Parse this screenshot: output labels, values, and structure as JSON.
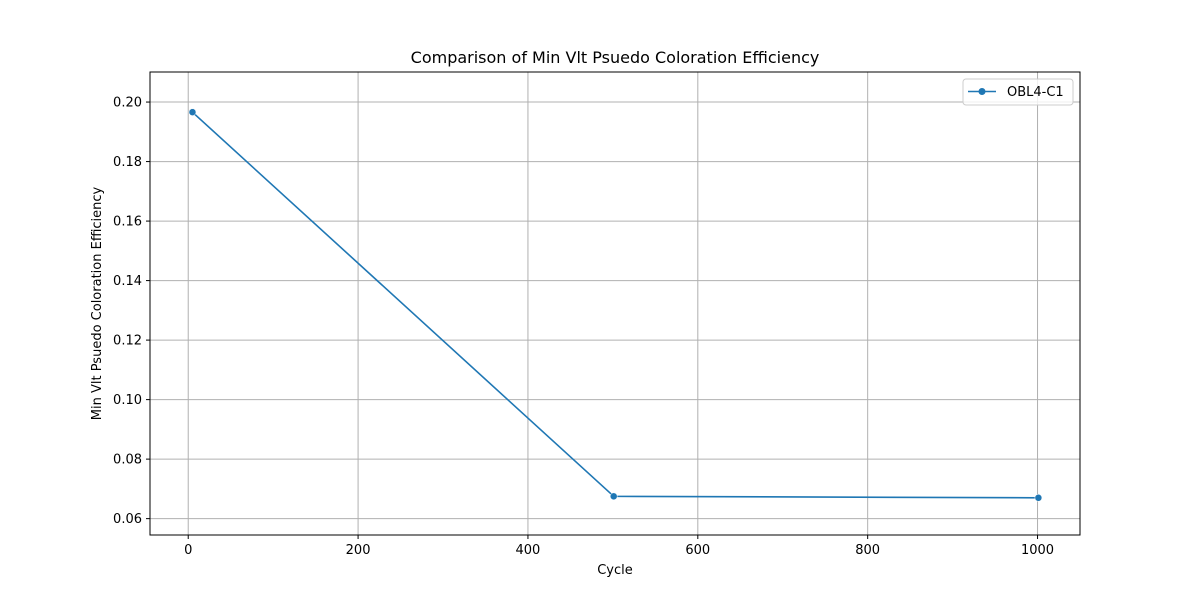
{
  "chart_data": {
    "type": "line",
    "title": "Comparison of Min Vlt Psuedo Coloration Efficiency",
    "xlabel": "Cycle",
    "ylabel": "Min Vlt Psuedo Coloration Efficiency",
    "xlim": [
      -45,
      1050
    ],
    "ylim": [
      0.0545,
      0.2101
    ],
    "xticks": [
      0,
      200,
      400,
      600,
      800,
      1000
    ],
    "xtick_labels": [
      "0",
      "200",
      "400",
      "600",
      "800",
      "1000"
    ],
    "yticks": [
      0.06,
      0.08,
      0.1,
      0.12,
      0.14,
      0.16,
      0.18,
      0.2
    ],
    "ytick_labels": [
      "0.06",
      "0.08",
      "0.10",
      "0.12",
      "0.14",
      "0.16",
      "0.18",
      "0.20"
    ],
    "grid": true,
    "legend_position": "top-right",
    "series": [
      {
        "name": "OBL4-C1",
        "color": "#1f77b4",
        "marker": "circle",
        "x": [
          5,
          501,
          1001
        ],
        "y": [
          0.1966,
          0.0675,
          0.067
        ]
      }
    ]
  }
}
